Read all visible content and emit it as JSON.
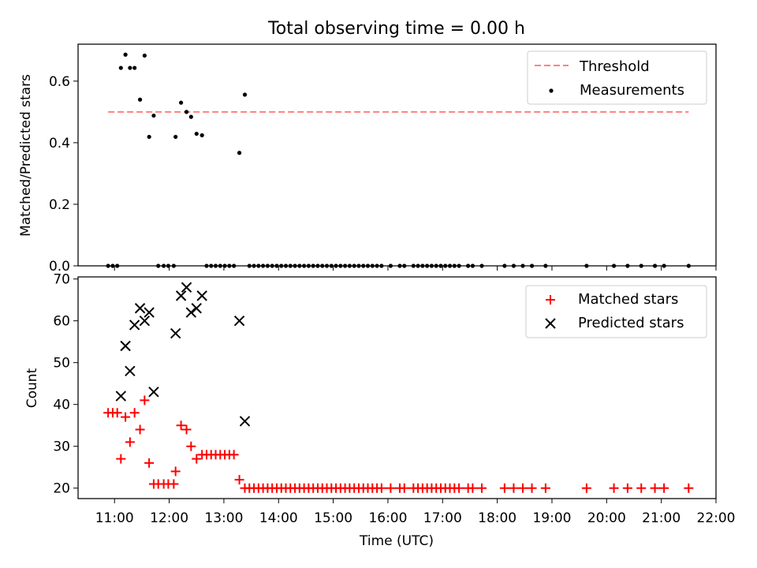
{
  "figure": {
    "title": "Total observing time = 0.00 h"
  },
  "chart_data": [
    {
      "type": "scatter",
      "ylabel": "Matched/Predicted stars",
      "xlabel": "",
      "xlim": [
        "10:20",
        "22:00"
      ],
      "ylim": [
        0,
        0.72
      ],
      "yticks": [
        0.0,
        0.2,
        0.4,
        0.6
      ],
      "ytick_labels": [
        "0.0",
        "0.2",
        "0.4",
        "0.6"
      ],
      "grid": false,
      "legend_position": "top-right",
      "threshold": {
        "name": "Threshold",
        "value": 0.5,
        "x": [
          "10:53",
          "21:30"
        ],
        "color": "#ff7f7f"
      },
      "series": [
        {
          "name": "Measurements",
          "color": "#000000",
          "marker": "dot",
          "points": [
            [
              "11:07",
              0.643
            ],
            [
              "11:12",
              0.686
            ],
            [
              "11:17",
              0.643
            ],
            [
              "11:22",
              0.643
            ],
            [
              "11:28",
              0.54
            ],
            [
              "11:33",
              0.683
            ],
            [
              "11:38",
              0.419
            ],
            [
              "11:43",
              0.488
            ],
            [
              "12:07",
              0.419
            ],
            [
              "12:13",
              0.53
            ],
            [
              "12:19",
              0.5
            ],
            [
              "12:24",
              0.484
            ],
            [
              "12:30",
              0.429
            ],
            [
              "12:36",
              0.424
            ],
            [
              "13:17",
              0.367
            ],
            [
              "13:23",
              0.556
            ],
            [
              "10:53",
              0
            ],
            [
              "10:58",
              0
            ],
            [
              "11:03",
              0
            ],
            [
              "11:48",
              0
            ],
            [
              "11:54",
              0
            ],
            [
              "11:59",
              0
            ],
            [
              "12:05",
              0
            ],
            [
              "12:41",
              0
            ],
            [
              "12:46",
              0
            ],
            [
              "12:51",
              0
            ],
            [
              "12:56",
              0
            ],
            [
              "13:01",
              0
            ],
            [
              "13:06",
              0
            ],
            [
              "13:11",
              0
            ],
            [
              "13:28",
              0
            ],
            [
              "13:33",
              0
            ],
            [
              "13:38",
              0
            ],
            [
              "13:43",
              0
            ],
            [
              "13:48",
              0
            ],
            [
              "13:53",
              0
            ],
            [
              "13:58",
              0
            ],
            [
              "14:03",
              0
            ],
            [
              "14:08",
              0
            ],
            [
              "14:13",
              0
            ],
            [
              "14:18",
              0
            ],
            [
              "14:23",
              0
            ],
            [
              "14:28",
              0
            ],
            [
              "14:33",
              0
            ],
            [
              "14:38",
              0
            ],
            [
              "14:43",
              0
            ],
            [
              "14:48",
              0
            ],
            [
              "14:53",
              0
            ],
            [
              "14:58",
              0
            ],
            [
              "15:03",
              0
            ],
            [
              "15:08",
              0
            ],
            [
              "15:13",
              0
            ],
            [
              "15:18",
              0
            ],
            [
              "15:23",
              0
            ],
            [
              "15:28",
              0
            ],
            [
              "15:33",
              0
            ],
            [
              "15:38",
              0
            ],
            [
              "15:43",
              0
            ],
            [
              "15:48",
              0
            ],
            [
              "15:53",
              0
            ],
            [
              "16:03",
              0
            ],
            [
              "16:13",
              0
            ],
            [
              "16:18",
              0
            ],
            [
              "16:28",
              0
            ],
            [
              "16:33",
              0
            ],
            [
              "16:38",
              0
            ],
            [
              "16:43",
              0
            ],
            [
              "16:48",
              0
            ],
            [
              "16:53",
              0
            ],
            [
              "16:58",
              0
            ],
            [
              "17:03",
              0
            ],
            [
              "17:08",
              0
            ],
            [
              "17:13",
              0
            ],
            [
              "17:18",
              0
            ],
            [
              "17:28",
              0
            ],
            [
              "17:33",
              0
            ],
            [
              "17:43",
              0
            ],
            [
              "18:08",
              0
            ],
            [
              "18:18",
              0
            ],
            [
              "18:28",
              0
            ],
            [
              "18:38",
              0
            ],
            [
              "18:53",
              0
            ],
            [
              "19:38",
              0
            ],
            [
              "20:08",
              0
            ],
            [
              "20:23",
              0
            ],
            [
              "20:38",
              0
            ],
            [
              "20:53",
              0
            ],
            [
              "21:03",
              0
            ],
            [
              "21:30",
              0
            ]
          ]
        }
      ]
    },
    {
      "type": "scatter",
      "xlabel": "Time (UTC)",
      "ylabel": "Count",
      "xlim": [
        "10:20",
        "22:00"
      ],
      "ylim": [
        17.5,
        70.5
      ],
      "yticks": [
        20,
        30,
        40,
        50,
        60,
        70
      ],
      "ytick_labels": [
        "20",
        "30",
        "40",
        "50",
        "60",
        "70"
      ],
      "xticks": [
        "11:00",
        "12:00",
        "13:00",
        "14:00",
        "15:00",
        "16:00",
        "17:00",
        "18:00",
        "19:00",
        "20:00",
        "21:00",
        "22:00"
      ],
      "grid": false,
      "legend_position": "top-right",
      "series": [
        {
          "name": "Matched stars",
          "color": "#ff0000",
          "marker": "plus",
          "points": [
            [
              "10:53",
              38
            ],
            [
              "10:58",
              38
            ],
            [
              "11:03",
              38
            ],
            [
              "11:07",
              27
            ],
            [
              "11:12",
              37
            ],
            [
              "11:17",
              31
            ],
            [
              "11:22",
              38
            ],
            [
              "11:28",
              34
            ],
            [
              "11:33",
              41
            ],
            [
              "11:38",
              26
            ],
            [
              "11:43",
              21
            ],
            [
              "11:48",
              21
            ],
            [
              "11:54",
              21
            ],
            [
              "11:59",
              21
            ],
            [
              "12:05",
              21
            ],
            [
              "12:07",
              24
            ],
            [
              "12:13",
              35
            ],
            [
              "12:19",
              34
            ],
            [
              "12:24",
              30
            ],
            [
              "12:30",
              27
            ],
            [
              "12:36",
              28
            ],
            [
              "12:41",
              28
            ],
            [
              "12:46",
              28
            ],
            [
              "12:51",
              28
            ],
            [
              "12:56",
              28
            ],
            [
              "13:01",
              28
            ],
            [
              "13:06",
              28
            ],
            [
              "13:11",
              28
            ],
            [
              "13:17",
              22
            ],
            [
              "13:23",
              20
            ],
            [
              "13:28",
              20
            ],
            [
              "13:33",
              20
            ],
            [
              "13:38",
              20
            ],
            [
              "13:43",
              20
            ],
            [
              "13:48",
              20
            ],
            [
              "13:53",
              20
            ],
            [
              "13:58",
              20
            ],
            [
              "14:03",
              20
            ],
            [
              "14:08",
              20
            ],
            [
              "14:13",
              20
            ],
            [
              "14:18",
              20
            ],
            [
              "14:23",
              20
            ],
            [
              "14:28",
              20
            ],
            [
              "14:33",
              20
            ],
            [
              "14:38",
              20
            ],
            [
              "14:43",
              20
            ],
            [
              "14:48",
              20
            ],
            [
              "14:53",
              20
            ],
            [
              "14:58",
              20
            ],
            [
              "15:03",
              20
            ],
            [
              "15:08",
              20
            ],
            [
              "15:13",
              20
            ],
            [
              "15:18",
              20
            ],
            [
              "15:23",
              20
            ],
            [
              "15:28",
              20
            ],
            [
              "15:33",
              20
            ],
            [
              "15:38",
              20
            ],
            [
              "15:43",
              20
            ],
            [
              "15:48",
              20
            ],
            [
              "15:53",
              20
            ],
            [
              "16:03",
              20
            ],
            [
              "16:13",
              20
            ],
            [
              "16:18",
              20
            ],
            [
              "16:28",
              20
            ],
            [
              "16:33",
              20
            ],
            [
              "16:38",
              20
            ],
            [
              "16:43",
              20
            ],
            [
              "16:48",
              20
            ],
            [
              "16:53",
              20
            ],
            [
              "16:58",
              20
            ],
            [
              "17:03",
              20
            ],
            [
              "17:08",
              20
            ],
            [
              "17:13",
              20
            ],
            [
              "17:18",
              20
            ],
            [
              "17:28",
              20
            ],
            [
              "17:33",
              20
            ],
            [
              "17:43",
              20
            ],
            [
              "18:08",
              20
            ],
            [
              "18:18",
              20
            ],
            [
              "18:28",
              20
            ],
            [
              "18:38",
              20
            ],
            [
              "18:53",
              20
            ],
            [
              "19:38",
              20
            ],
            [
              "20:08",
              20
            ],
            [
              "20:23",
              20
            ],
            [
              "20:38",
              20
            ],
            [
              "20:53",
              20
            ],
            [
              "21:03",
              20
            ],
            [
              "21:30",
              20
            ]
          ]
        },
        {
          "name": "Predicted stars",
          "color": "#000000",
          "marker": "x",
          "points": [
            [
              "11:07",
              42
            ],
            [
              "11:12",
              54
            ],
            [
              "11:17",
              48
            ],
            [
              "11:22",
              59
            ],
            [
              "11:28",
              63
            ],
            [
              "11:33",
              60
            ],
            [
              "11:38",
              62
            ],
            [
              "11:43",
              43
            ],
            [
              "12:07",
              57
            ],
            [
              "12:13",
              66
            ],
            [
              "12:19",
              68
            ],
            [
              "12:24",
              62
            ],
            [
              "12:30",
              63
            ],
            [
              "12:36",
              66
            ],
            [
              "13:17",
              60
            ],
            [
              "13:23",
              36
            ]
          ]
        }
      ]
    }
  ]
}
